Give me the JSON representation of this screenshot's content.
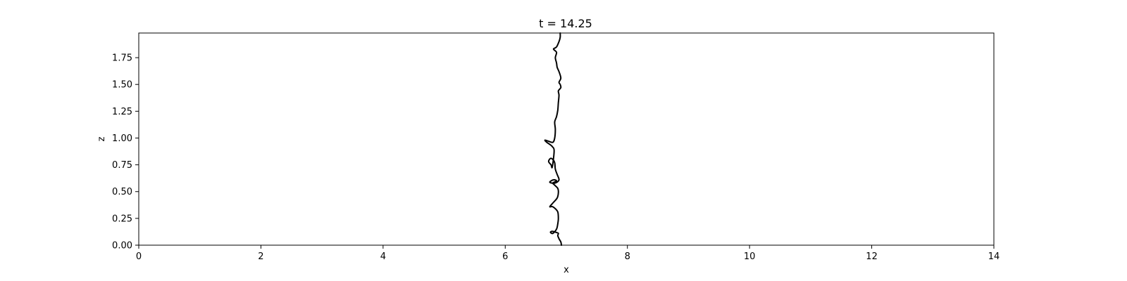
{
  "chart_data": {
    "type": "line",
    "title": "t = 14.25",
    "xlabel": "x",
    "ylabel": "z",
    "xlim": [
      0,
      14
    ],
    "ylim": [
      0,
      1.98
    ],
    "x_ticks": [
      0,
      2,
      4,
      6,
      8,
      10,
      12,
      14
    ],
    "x_tick_labels": [
      "0",
      "2",
      "4",
      "6",
      "8",
      "10",
      "12",
      "14"
    ],
    "y_ticks": [
      0,
      0.25,
      0.5,
      0.75,
      1.0,
      1.25,
      1.5,
      1.75
    ],
    "y_tick_labels": [
      "0.00",
      "0.25",
      "0.50",
      "0.75",
      "1.00",
      "1.25",
      "1.50",
      "1.75"
    ],
    "grid": false,
    "legend": "none",
    "line_color": "#000000",
    "series": [
      {
        "points": [
          [
            6.92,
            0.0
          ],
          [
            6.91,
            0.03
          ],
          [
            6.88,
            0.06
          ],
          [
            6.86,
            0.09
          ],
          [
            6.87,
            0.11
          ],
          [
            6.83,
            0.12
          ],
          [
            6.77,
            0.13
          ],
          [
            6.74,
            0.12
          ],
          [
            6.78,
            0.11
          ],
          [
            6.84,
            0.15
          ],
          [
            6.86,
            0.2
          ],
          [
            6.87,
            0.25
          ],
          [
            6.86,
            0.31
          ],
          [
            6.82,
            0.34
          ],
          [
            6.77,
            0.36
          ],
          [
            6.73,
            0.36
          ],
          [
            6.79,
            0.4
          ],
          [
            6.85,
            0.44
          ],
          [
            6.87,
            0.49
          ],
          [
            6.86,
            0.53
          ],
          [
            6.81,
            0.56
          ],
          [
            6.78,
            0.58
          ],
          [
            6.84,
            0.6
          ],
          [
            6.79,
            0.61
          ],
          [
            6.73,
            0.59
          ],
          [
            6.76,
            0.58
          ],
          [
            6.82,
            0.58
          ],
          [
            6.88,
            0.61
          ],
          [
            6.85,
            0.66
          ],
          [
            6.82,
            0.71
          ],
          [
            6.81,
            0.77
          ],
          [
            6.78,
            0.8
          ],
          [
            6.74,
            0.81
          ],
          [
            6.71,
            0.78
          ],
          [
            6.75,
            0.75
          ],
          [
            6.77,
            0.73
          ],
          [
            6.8,
            0.88
          ],
          [
            6.77,
            0.92
          ],
          [
            6.73,
            0.94
          ],
          [
            6.68,
            0.96
          ],
          [
            6.65,
            0.98
          ],
          [
            6.71,
            0.97
          ],
          [
            6.78,
            0.96
          ],
          [
            6.81,
            1.0
          ],
          [
            6.82,
            1.08
          ],
          [
            6.81,
            1.15
          ],
          [
            6.84,
            1.2
          ],
          [
            6.86,
            1.26
          ],
          [
            6.87,
            1.33
          ],
          [
            6.88,
            1.4
          ],
          [
            6.87,
            1.44
          ],
          [
            6.91,
            1.47
          ],
          [
            6.9,
            1.5
          ],
          [
            6.88,
            1.52
          ],
          [
            6.91,
            1.56
          ],
          [
            6.88,
            1.62
          ],
          [
            6.85,
            1.66
          ],
          [
            6.84,
            1.7
          ],
          [
            6.82,
            1.75
          ],
          [
            6.84,
            1.8
          ],
          [
            6.79,
            1.83
          ],
          [
            6.84,
            1.85
          ],
          [
            6.88,
            1.9
          ],
          [
            6.9,
            1.94
          ],
          [
            6.9,
            1.98
          ]
        ]
      }
    ]
  }
}
